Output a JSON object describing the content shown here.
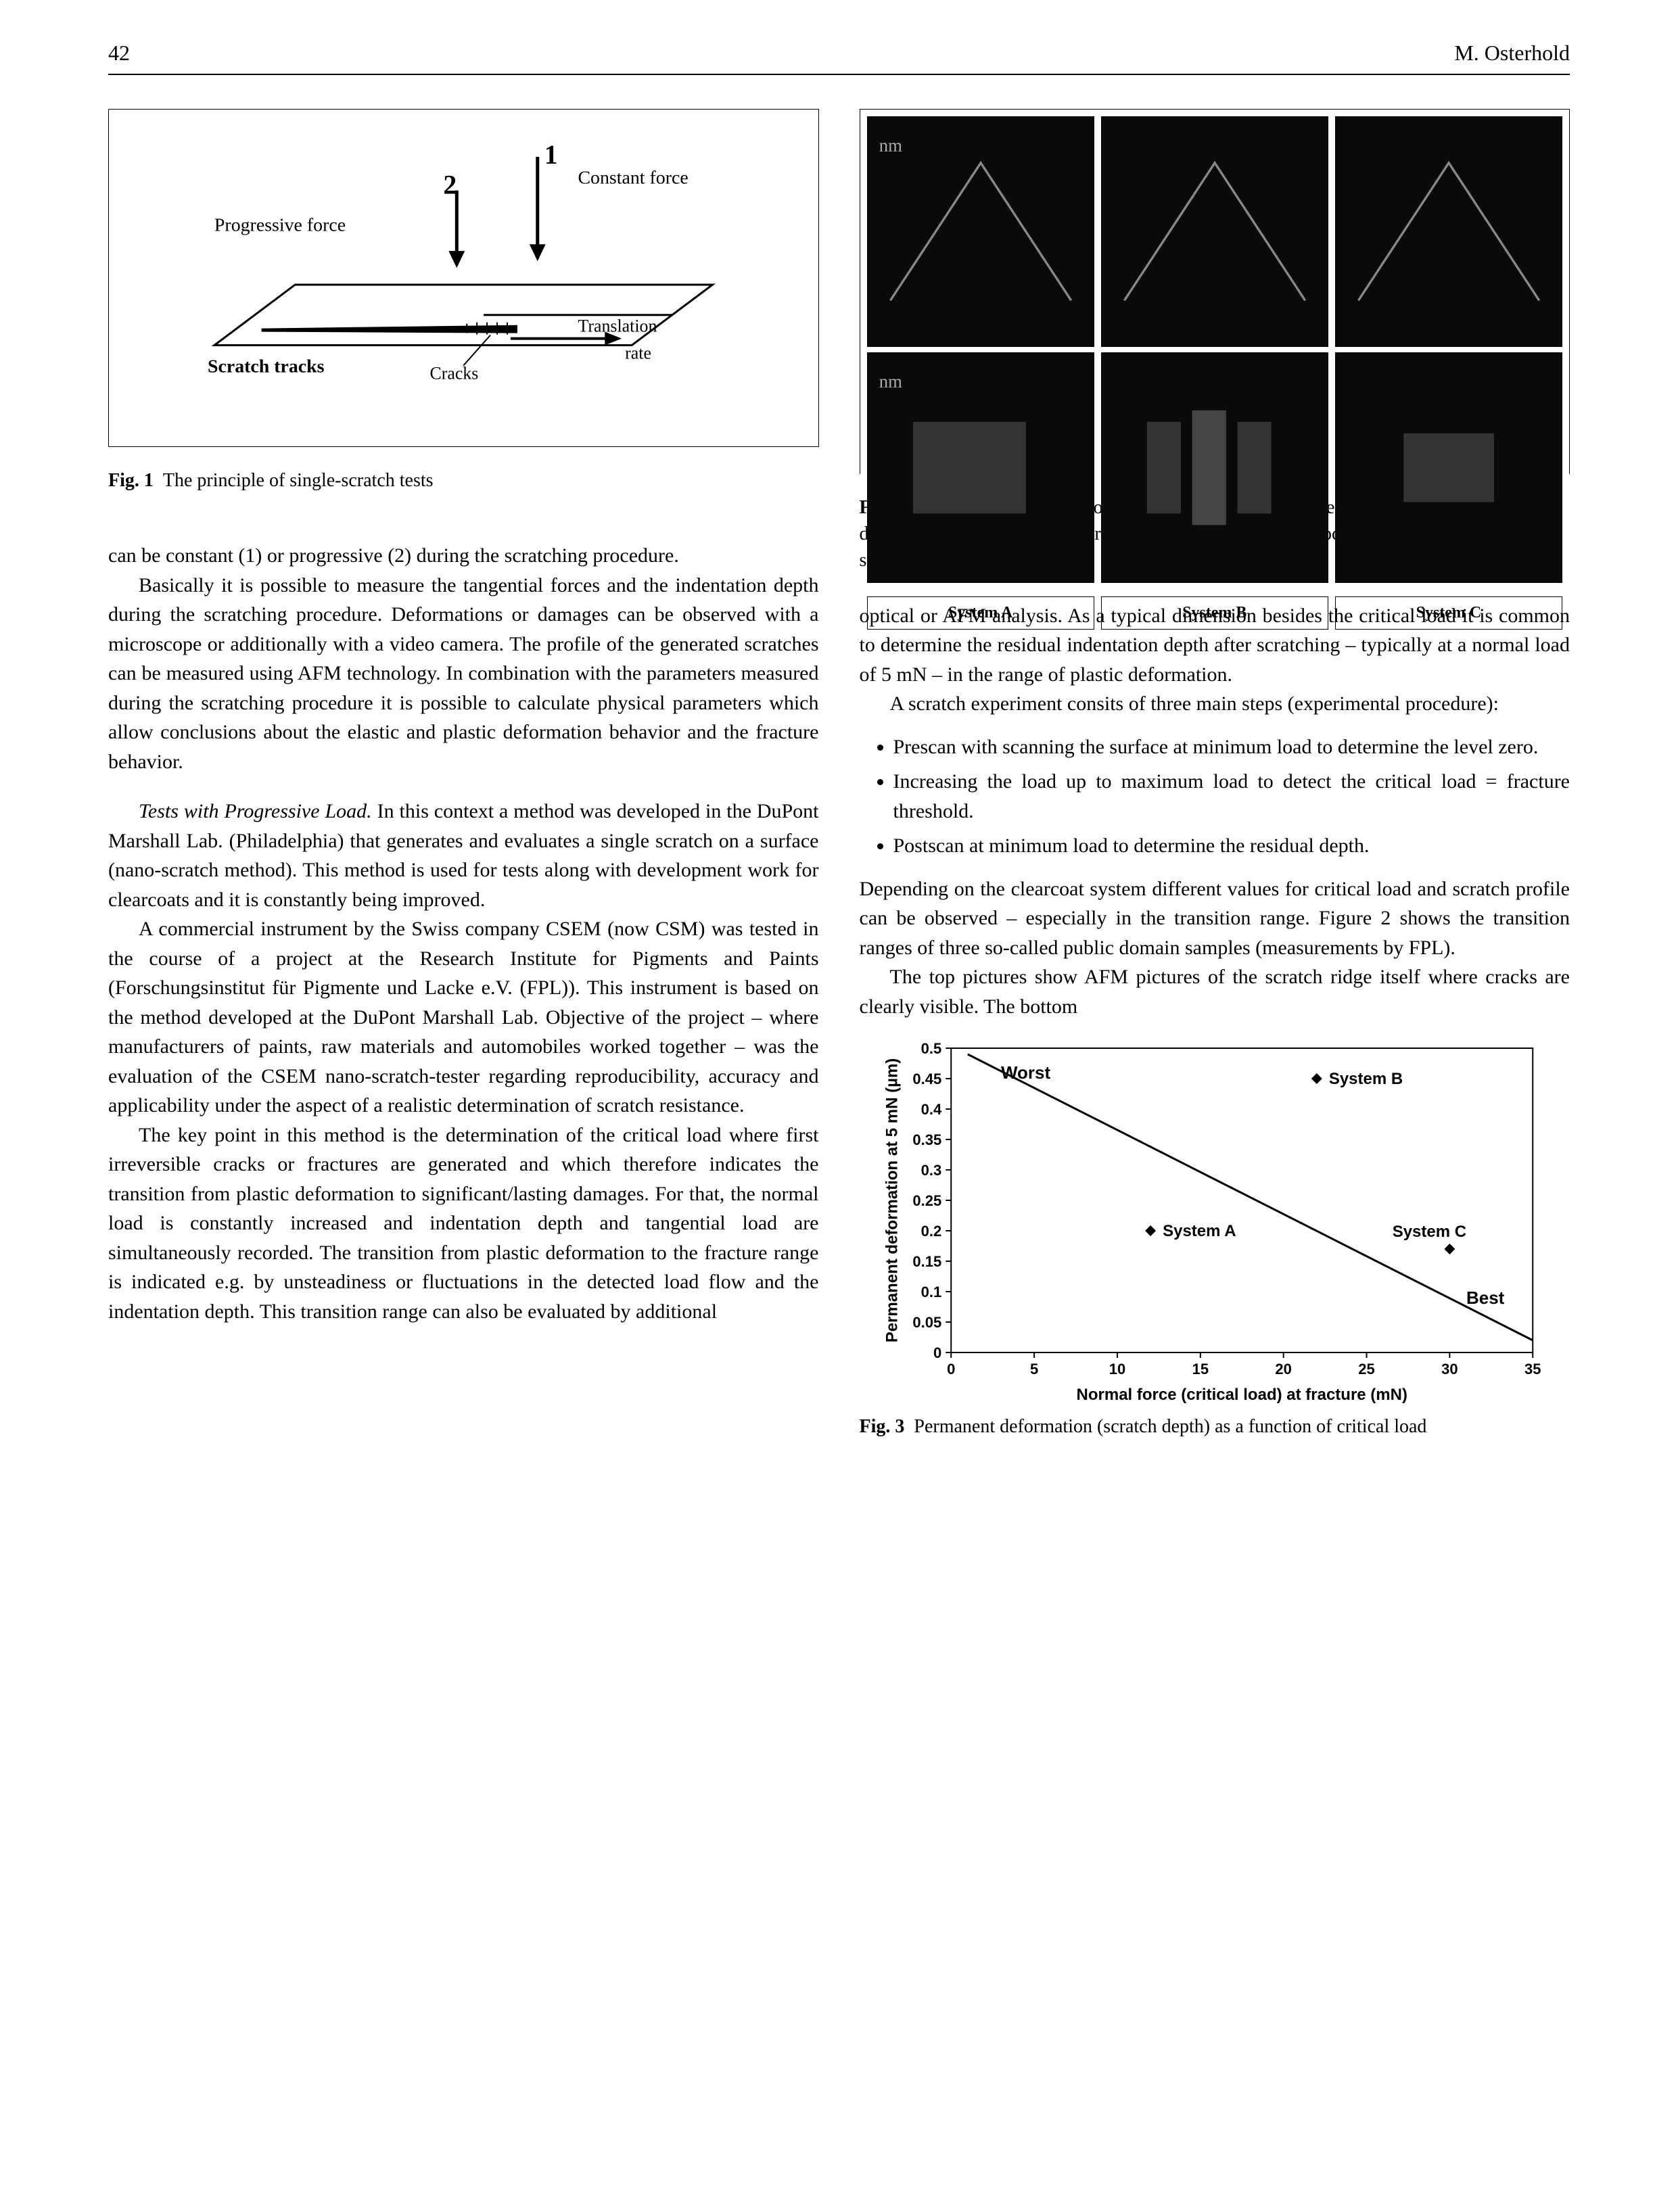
{
  "header": {
    "page": "42",
    "author": "M. Osterhold"
  },
  "fig1": {
    "label_constant": "Constant force",
    "label_progressive": "Progressive force",
    "label_translation": "Translation rate",
    "label_scratch": "Scratch tracks",
    "label_cracks": "Cracks",
    "num1": "1",
    "num2": "2",
    "caption_bold": "Fig. 1",
    "caption": "The principle of single-scratch tests"
  },
  "fig2": {
    "sysA": "System A",
    "sysB": "System B",
    "sysC": "System C",
    "caption_bold": "Fig. 2",
    "caption": "AFM (top) and microscopical (light microscope) images (bottom) of cracks in different coating systems (A acrylate/melamine, B acrylate/isocyanate, C elast. melamine system)"
  },
  "text": {
    "p1": "can be constant (1) or progressive (2) during the scratching procedure.",
    "p2": "Basically it is possible to measure the tangential forces and the indentation depth during the scratching procedure. Deformations or damages can be observed with a microscope or additionally with a video camera. The profile of the generated scratches can be measured using AFM technology. In combination with the parameters measured during the scratching procedure it is possible to calculate physical parameters which allow conclusions about the elastic and plastic deformation behavior and the fracture behavior.",
    "sect1_title": "Tests with Progressive Load.",
    "sect1_body": " In this context a method was developed in the DuPont Marshall Lab. (Philadelphia) that generates and evaluates a single scratch on a surface (nano-scratch method). This method is used for tests along with development work for clearcoats and it is constantly being improved.",
    "p3": "A commercial instrument by the Swiss company CSEM (now CSM) was tested in the course of a project at the Research Institute for Pigments and Paints (Forschungsinstitut für Pigmente und Lacke e.V. (FPL)). This instrument is based on the method developed at the DuPont Marshall Lab. Objective of the project – where manufacturers of paints, raw materials and automobiles worked together – was the evaluation of the CSEM nano-scratch-tester regarding reproducibility, accuracy and applicability under the aspect of a realistic determination of scratch resistance.",
    "p4": "The key point in this method is the determination of the critical load where first irreversible cracks or fractures are generated and which therefore indicates the transition from plastic deformation to significant/lasting damages. For that, the normal load is constantly increased and indentation depth and tangential load are simultaneously recorded. The transition from plastic deformation to the fracture range is indicated e.g. by unsteadiness or fluctuations in the detected load flow and the indentation depth. This transition range can also be evaluated by additional",
    "p5": "optical or AFM analysis. As a typical dimension besides the critical load it is common to determine the residual indentation depth after scratching – typically at a normal load of 5 mN – in the range of plastic deformation.",
    "p6": "A scratch experiment consits of three main steps (experimental procedure):",
    "b1": "Prescan with scanning the surface at minimum load to determine the level zero.",
    "b2": "Increasing the load up to maximum load to detect the critical load = fracture threshold.",
    "b3": "Postscan at minimum load to determine the residual depth.",
    "p7": "Depending on the clearcoat system different values for critical load and scratch profile can be observed – especially in the transition range. Figure 2 shows the transition ranges of three so-called public domain samples (measurements by FPL).",
    "p8": "The top pictures show AFM pictures of the scratch ridge itself where cracks are clearly visible. The bottom"
  },
  "fig3": {
    "caption_bold": "Fig. 3",
    "caption": "Permanent deformation (scratch depth) as a function of critical load",
    "chart": {
      "type": "scatter-line",
      "xlabel": "Normal force (critical load) at fracture (mN)",
      "ylabel": "Permanent deformation at 5 mN (µm)",
      "xlim": [
        0,
        35
      ],
      "xtick_step": 5,
      "ylim": [
        0,
        0.5
      ],
      "ytick_step": 0.05,
      "xticks": [
        "0",
        "5",
        "10",
        "15",
        "20",
        "25",
        "30",
        "35"
      ],
      "yticks": [
        "0",
        "0.05",
        "0.1",
        "0.15",
        "0.2",
        "0.25",
        "0.3",
        "0.35",
        "0.4",
        "0.45",
        "0.5"
      ],
      "label_worst": "Worst",
      "label_best": "Best",
      "series": [
        {
          "name": "System A",
          "label": "System A",
          "x": 12,
          "y": 0.2,
          "marker_color": "#000000"
        },
        {
          "name": "System B",
          "label": "System B",
          "x": 22,
          "y": 0.45,
          "marker_color": "#000000"
        },
        {
          "name": "System C",
          "label": "System C",
          "x": 30,
          "y": 0.17,
          "marker_color": "#000000"
        }
      ],
      "line_color": "#000000",
      "line_points": [
        [
          1,
          0.49
        ],
        [
          35,
          0.02
        ]
      ],
      "background_color": "#ffffff",
      "axis_color": "#000000",
      "tick_fontsize": 22,
      "label_fontsize": 24,
      "label_fontweight": "bold"
    }
  }
}
